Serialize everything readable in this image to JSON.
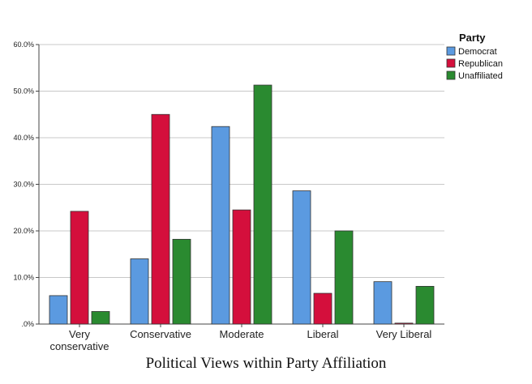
{
  "caption": "Political Views within Party Affiliation",
  "chart_data": {
    "type": "bar",
    "categories": [
      [
        "Very",
        "conservative"
      ],
      [
        "Conservative"
      ],
      [
        "Moderate"
      ],
      [
        "Liberal"
      ],
      [
        "Very Liberal"
      ]
    ],
    "series": [
      {
        "name": "Democrat",
        "color": "#5b9ae0",
        "values": [
          6.1,
          14.0,
          42.4,
          28.6,
          9.1
        ]
      },
      {
        "name": "Republican",
        "color": "#d40f3c",
        "values": [
          24.2,
          45.0,
          24.5,
          6.6,
          0.2
        ]
      },
      {
        "name": "Unaffiliated",
        "color": "#2a8a30",
        "values": [
          2.7,
          18.2,
          51.3,
          20.0,
          8.1
        ]
      }
    ],
    "yticks": [
      0,
      10,
      20,
      30,
      40,
      50,
      60
    ],
    "ytick_labels": [
      ".0%",
      "10.0%",
      "20.0%",
      "30.0%",
      "40.0%",
      "50.0%",
      "60.0%"
    ],
    "ylim": [
      0,
      60
    ],
    "grid": true,
    "legend_title": "Party",
    "legend_position": "top-right"
  }
}
